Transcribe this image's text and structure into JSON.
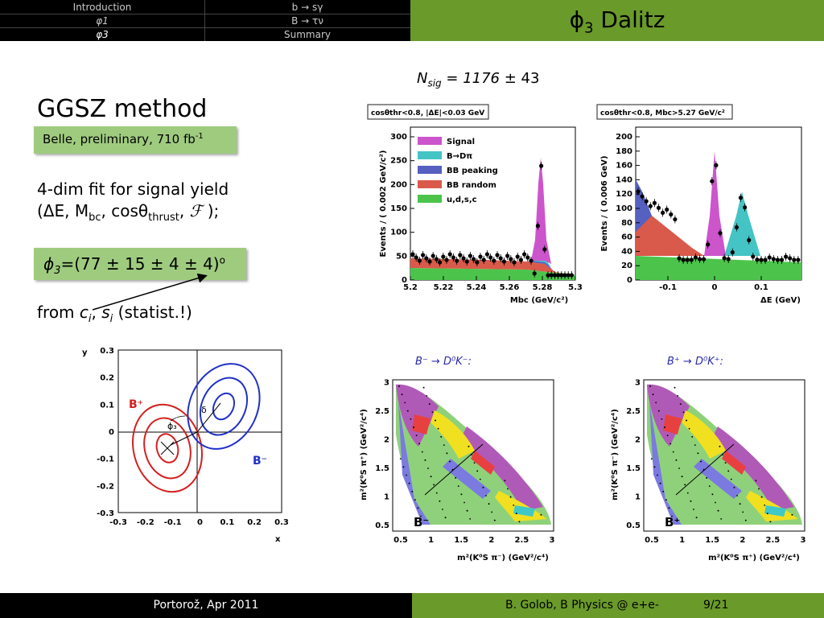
{
  "header": {
    "nav": [
      {
        "label": "Introduction",
        "active": false
      },
      {
        "label": "b → sγ",
        "active": false
      },
      {
        "label": "φ1",
        "active": false
      },
      {
        "label": "B → τν",
        "active": false
      },
      {
        "label": "φ3",
        "active": true
      },
      {
        "label": "Summary",
        "active": false
      }
    ],
    "title_symbol": "ϕ",
    "title_sub": "3",
    "title_text": " Dalitz"
  },
  "main": {
    "heading": "GGSZ method",
    "badge": {
      "text": "Belle, preliminary, 710 fb",
      "sup": "-1"
    },
    "fit_line1": "4-dim fit for signal yield",
    "fit_line2_a": "(ΔE, M",
    "fit_line2_sub1": "bc",
    "fit_line2_b": ", cosθ",
    "fit_line2_sub2": "thrust",
    "fit_line2_c": ", ",
    "fit_line2_f": "ℱ",
    "fit_line2_d": " );",
    "result": {
      "sym": "ϕ",
      "sub": "3",
      "value": "=(77 ± 15 ± 4 ± 4)",
      "sup": "o"
    },
    "from_a": "from ",
    "from_c": "c",
    "from_ci": "i",
    "from_b": ", ",
    "from_s": "s",
    "from_si": "i",
    "from_end": " (statist.!)",
    "nsig": {
      "n": "N",
      "sub": "sig",
      "eq": " = 1176",
      "err": " ± 43"
    }
  },
  "plots": {
    "mbc": {
      "cut": "cosθthr<0.8, |ΔE|<0.03 GeV",
      "ylabel": "Events / ( 0.002 GeV/c²)",
      "xlabel": "Mbc (GeV/c²)",
      "xticks": [
        "5.2",
        "5.22",
        "5.24",
        "5.26",
        "5.28",
        "5.3"
      ],
      "yticks": [
        "0",
        "50",
        "100",
        "150",
        "200",
        "250",
        "300"
      ],
      "legend": [
        "Signal",
        "B→Dπ",
        "BB peaking",
        "BB random",
        "u,d,s,c"
      ]
    },
    "de": {
      "cut": "cosθthr<0.8, Mbc>5.27 GeV/c²",
      "ylabel": "Events / ( 0.006 GeV)",
      "xlabel": "ΔE (GeV)",
      "xticks": [
        "-0.1",
        "0",
        "0.1"
      ],
      "yticks": [
        "0",
        "20",
        "40",
        "60",
        "80",
        "100",
        "120",
        "140",
        "160",
        "180",
        "200"
      ]
    },
    "ellipse": {
      "ylabel": "y",
      "xlabel": "x",
      "ticks": [
        "-0.3",
        "-0.2",
        "-0.1",
        "0",
        "0.1",
        "0.2",
        "0.3"
      ],
      "bplus": "B⁺",
      "bminus": "B⁻",
      "phi3": "ϕ₃",
      "delta": "δ"
    },
    "dalitz_minus": {
      "title": "B⁻ → D⁰K⁻:",
      "label": "B⁻",
      "xlabel": "m²(K⁰S π⁻) (GeV²/c⁴)",
      "ylabel": "m²(K⁰S π⁺) (GeV²/c⁴)",
      "xticks": [
        "0.5",
        "1",
        "1.5",
        "2",
        "2.5",
        "3"
      ],
      "yticks": [
        "0.5",
        "1",
        "1.5",
        "2",
        "2.5",
        "3"
      ]
    },
    "dalitz_plus": {
      "title": "B⁺ → D⁰K⁺:",
      "label": "B⁺",
      "xlabel": "m²(K⁰S π⁺) (GeV²/c⁴)",
      "ylabel": "m²(K⁰S π⁻) (GeV²/c⁴)",
      "xticks": [
        "0.5",
        "1",
        "1.5",
        "2",
        "2.5",
        "3"
      ],
      "yticks": [
        "0.5",
        "1",
        "1.5",
        "2",
        "2.5",
        "3"
      ]
    }
  },
  "footer": {
    "left": "Portorož,  Apr 2011",
    "right": "B. Golob, B Physics @ e+e-",
    "page": "9/21"
  },
  "colors": {
    "header_green": "#6a9a2a",
    "box_green": "#9fcb7f",
    "signal": "#cc55cc",
    "bdpi": "#44c4c4",
    "bb_peaking": "#5560c0",
    "bb_random": "#d95a4a",
    "udsc": "#4cc44c"
  }
}
